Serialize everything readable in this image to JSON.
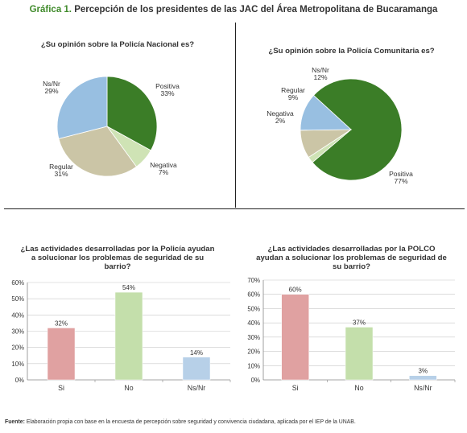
{
  "figure": {
    "lead": "Gráfica 1.",
    "title": "Percepción de los presidentes de las JAC del Área Metropolitana de Bucaramanga",
    "source_label": "Fuente:",
    "source_text": "Elaboración propia con base en la encuesta de percepción sobre seguridad y convivencia ciudadana, aplicada por el IEP de la UNAB."
  },
  "chart_data": [
    {
      "type": "pie",
      "title": "¿Su opinión sobre la Policía Nacional es?",
      "slices": [
        {
          "label": "Positiva",
          "value": 33,
          "value_label": "33%",
          "color": "#3b7d27"
        },
        {
          "label": "Negativa",
          "value": 7,
          "value_label": "7%",
          "color": "#cfe3b5"
        },
        {
          "label": "Regular",
          "value": 31,
          "value_label": "31%",
          "color": "#cbc5a6"
        },
        {
          "label": "Ns/Nr",
          "value": 29,
          "value_label": "29%",
          "color": "#98bfe1"
        }
      ]
    },
    {
      "type": "pie",
      "title": "¿Su opinión sobre la Policía Comunitaria es?",
      "slices": [
        {
          "label": "Positiva",
          "value": 77,
          "value_label": "77%",
          "color": "#3b7d27"
        },
        {
          "label": "Negativa",
          "value": 2,
          "value_label": "2%",
          "color": "#cfe3b5"
        },
        {
          "label": "Regular",
          "value": 9,
          "value_label": "9%",
          "color": "#cbc5a6"
        },
        {
          "label": "Ns/Nr",
          "value": 12,
          "value_label": "12%",
          "color": "#98bfe1"
        }
      ]
    },
    {
      "type": "bar",
      "title": "¿Las actividades desarrolladas por la Policía ayudan a solucionar los problemas de seguridad de su barrio?",
      "categories": [
        "Si",
        "No",
        "Ns/Nr"
      ],
      "values": [
        32,
        54,
        14
      ],
      "value_labels": [
        "32%",
        "54%",
        "14%"
      ],
      "colors": [
        "#e0a1a1",
        "#c4dfab",
        "#b7d0e8"
      ],
      "ylim": [
        0,
        60
      ],
      "yticks": [
        0,
        10,
        20,
        30,
        40,
        50,
        60
      ],
      "ytick_labels": [
        "0%",
        "10%",
        "20%",
        "30%",
        "40%",
        "50%",
        "60%"
      ]
    },
    {
      "type": "bar",
      "title": "¿Las actividades desarrolladas por la POLCO ayudan a solucionar los problemas de seguridad de su barrio?",
      "categories": [
        "Si",
        "No",
        "Ns/Nr"
      ],
      "values": [
        60,
        37,
        3
      ],
      "value_labels": [
        "60%",
        "37%",
        "3%"
      ],
      "colors": [
        "#e0a1a1",
        "#c4dfab",
        "#b7d0e8"
      ],
      "ylim": [
        0,
        70
      ],
      "yticks": [
        0,
        10,
        20,
        30,
        40,
        50,
        60,
        70
      ],
      "ytick_labels": [
        "0%",
        "10%",
        "20%",
        "30%",
        "40%",
        "50%",
        "60%",
        "70%"
      ]
    }
  ]
}
